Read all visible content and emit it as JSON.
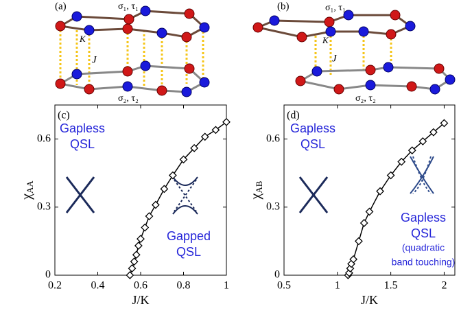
{
  "diagrams": [
    {
      "label": "(a)",
      "top_layer": "σ₁, τ₁",
      "intra": "K",
      "inter": "J",
      "bottom_layer": "σ₂, τ₂"
    },
    {
      "label": "(b)",
      "top_layer": "σ₁, τ₁",
      "intra": "K",
      "inter": "J",
      "bottom_layer": "σ₂, τ₂"
    }
  ],
  "chart_data": [
    {
      "type": "line",
      "label": "(c)",
      "xlabel": "J/K",
      "ylabel": "χ",
      "ylabel_subscript": "AA",
      "x": [
        0.55,
        0.56,
        0.57,
        0.58,
        0.59,
        0.6,
        0.62,
        0.64,
        0.67,
        0.71,
        0.75,
        0.8,
        0.85,
        0.9,
        0.95,
        1.0
      ],
      "values": [
        0,
        0.03,
        0.06,
        0.09,
        0.13,
        0.16,
        0.21,
        0.26,
        0.31,
        0.38,
        0.44,
        0.51,
        0.56,
        0.61,
        0.64,
        0.675
      ],
      "color": "#000000",
      "xlim": [
        0.2,
        1
      ],
      "ylim": [
        0,
        0.75
      ],
      "xticks": [
        0.2,
        0.4,
        0.6,
        0.8,
        1
      ],
      "yticks": [
        0,
        0.3,
        0.6
      ],
      "annotations": [
        [
          "Gapless",
          "QSL"
        ],
        [
          "Gapped",
          "QSL"
        ]
      ],
      "annotation_color": "#2626d9"
    },
    {
      "type": "line",
      "label": "(d)",
      "xlabel": "J/K",
      "ylabel": "χ",
      "ylabel_subscript": "AB",
      "x": [
        1.1,
        1.11,
        1.12,
        1.13,
        1.15,
        1.2,
        1.25,
        1.3,
        1.4,
        1.5,
        1.6,
        1.7,
        1.8,
        1.9,
        2.0
      ],
      "values": [
        0,
        0.01,
        0.03,
        0.05,
        0.07,
        0.15,
        0.23,
        0.28,
        0.37,
        0.44,
        0.5,
        0.55,
        0.59,
        0.63,
        0.67
      ],
      "color": "#000000",
      "xlim": [
        0.5,
        2.1
      ],
      "ylim": [
        0,
        0.75
      ],
      "xticks": [
        0.5,
        1,
        1.5,
        2
      ],
      "yticks": [
        0,
        0.3,
        0.6
      ],
      "annotations": [
        [
          "Gapless",
          "QSL"
        ],
        [
          "Gapless",
          "QSL",
          "(quadratic",
          "band touching)"
        ]
      ],
      "annotation_color": "#2626d9"
    }
  ]
}
